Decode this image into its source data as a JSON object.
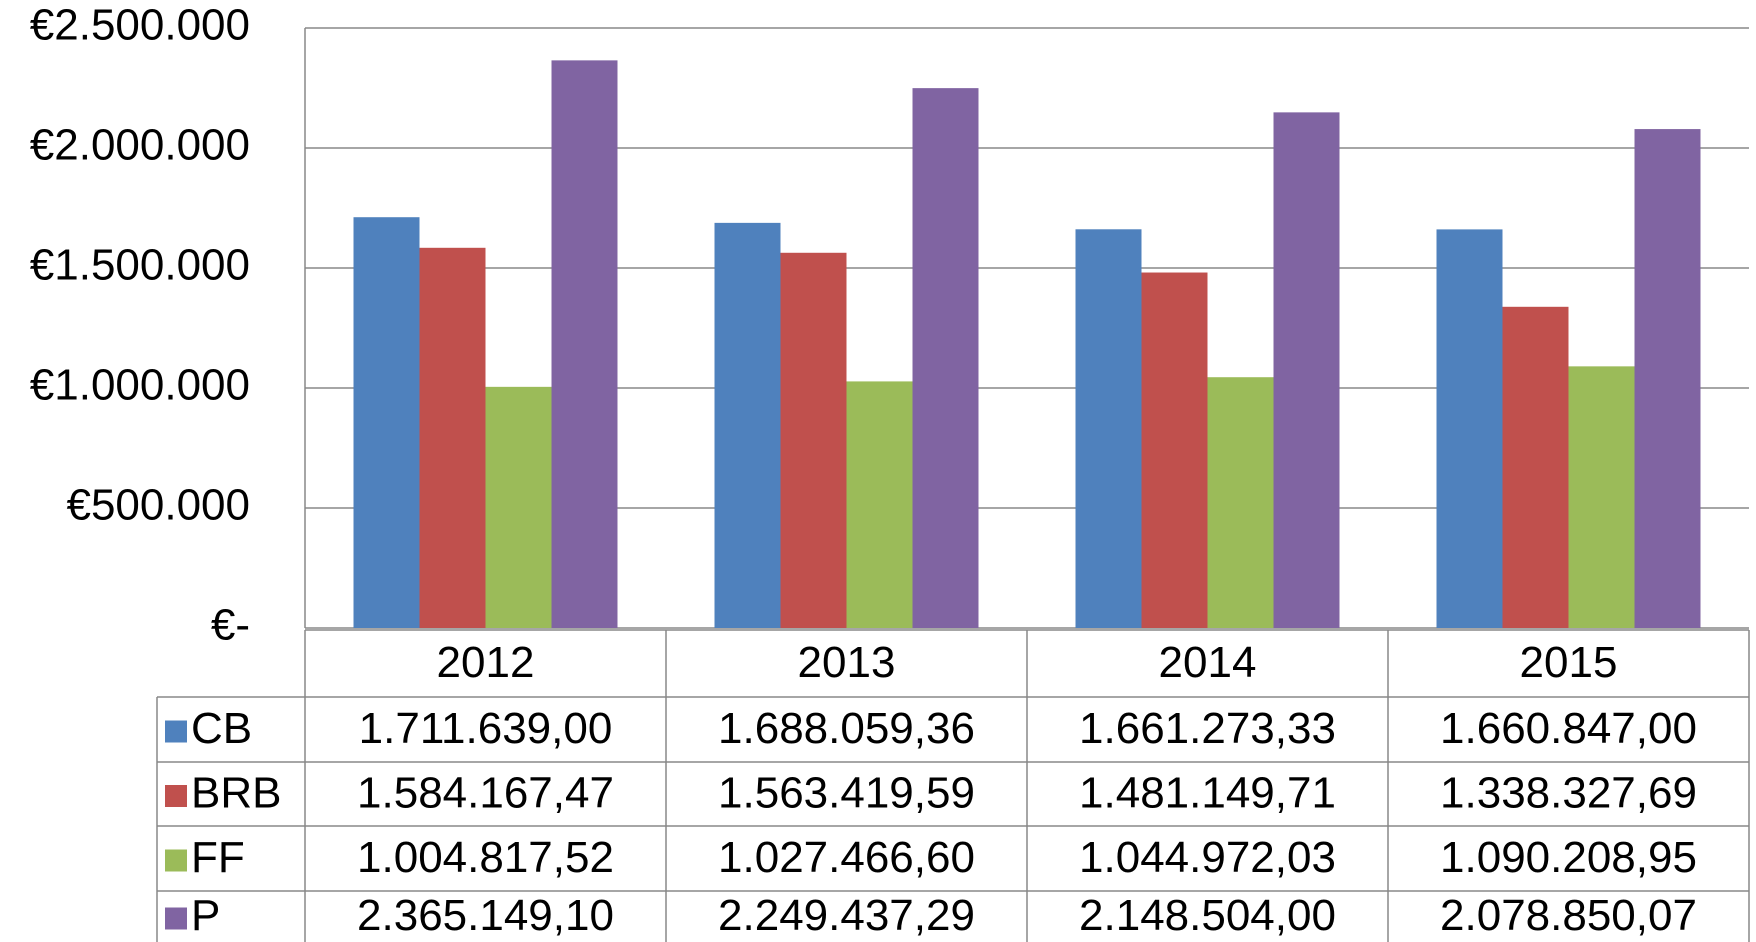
{
  "chart_data": {
    "type": "bar",
    "categories": [
      "2012",
      "2013",
      "2014",
      "2015"
    ],
    "series": [
      {
        "name": "CB",
        "color": "#4f81bd",
        "values": [
          1711639.0,
          1688059.36,
          1661273.33,
          1660847.0
        ],
        "value_labels": [
          "1.711.639,00",
          "1.688.059,36",
          "1.661.273,33",
          "1.660.847,00"
        ]
      },
      {
        "name": "BRB",
        "color": "#c0504d",
        "values": [
          1584167.47,
          1563419.59,
          1481149.71,
          1338327.69
        ],
        "value_labels": [
          "1.584.167,47",
          "1.563.419,59",
          "1.481.149,71",
          "1.338.327,69"
        ]
      },
      {
        "name": "FF",
        "color": "#9bbb59",
        "values": [
          1004817.52,
          1027466.6,
          1044972.03,
          1090208.95
        ],
        "value_labels": [
          "1.004.817,52",
          "1.027.466,60",
          "1.044.972,03",
          "1.090.208,95"
        ]
      },
      {
        "name": "P",
        "color": "#8064a2",
        "values": [
          2365149.1,
          2249437.29,
          2148504.0,
          2078850.07
        ],
        "value_labels": [
          "2.365.149,10",
          "2.249.437,29",
          "2.148.504,00",
          "2.078.850,07"
        ]
      }
    ],
    "ylim": [
      0,
      2500000
    ],
    "yticks": [
      {
        "value": 0,
        "label": "€-"
      },
      {
        "value": 500000,
        "label": "€500.000"
      },
      {
        "value": 1000000,
        "label": "€1.000.000"
      },
      {
        "value": 1500000,
        "label": "€1.500.000"
      },
      {
        "value": 2000000,
        "label": "€2.000.000"
      },
      {
        "value": 2500000,
        "label": "€2.500.000"
      }
    ],
    "grid": true
  }
}
